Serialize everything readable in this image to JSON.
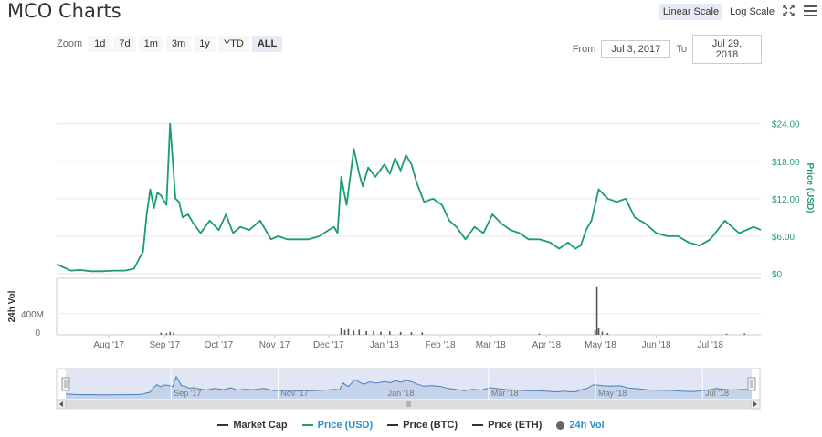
{
  "title": "MCO Charts",
  "scale": {
    "linear_label": "Linear Scale",
    "log_label": "Log Scale",
    "active": "linear"
  },
  "zoom": {
    "label": "Zoom",
    "buttons": [
      "1d",
      "7d",
      "1m",
      "3m",
      "1y",
      "YTD",
      "ALL"
    ],
    "active": "ALL"
  },
  "range": {
    "from_label": "From",
    "from_value": "Jul 3, 2017",
    "to_label": "To",
    "to_value": "Jul 29, 2018"
  },
  "legend": {
    "market_cap": "Market Cap",
    "price_usd": "Price (USD)",
    "price_btc": "Price (BTC)",
    "price_eth": "Price (ETH)",
    "vol_24h": "24h Vol"
  },
  "colors": {
    "price": "#1a9e6e",
    "volume": "#555555",
    "navigator": "#4a7fbf",
    "navigator_bg": "#ccd6eb",
    "accent_axis": "#2a9d6a"
  },
  "chart_data": {
    "type": "line",
    "x_range": [
      "2017-07-03",
      "2018-07-29"
    ],
    "price_axis": {
      "label": "Price (USD)",
      "ylim": [
        0,
        26
      ],
      "ticks": [
        "$0",
        "$6.00",
        "$12.00",
        "$18.00",
        "$24.00"
      ]
    },
    "volume_axis": {
      "label": "24h Vol",
      "ticks": [
        "0",
        "400M"
      ]
    },
    "x_tick_labels": [
      "Aug '17",
      "Sep '17",
      "Oct '17",
      "Nov '17",
      "Dec '17",
      "Jan '18",
      "Feb '18",
      "Mar '18",
      "Apr '18",
      "May '18",
      "Jun '18",
      "Jul '18"
    ],
    "x_tick_dates": [
      "2017-08-01",
      "2017-09-01",
      "2017-10-01",
      "2017-11-01",
      "2017-12-01",
      "2018-01-01",
      "2018-02-01",
      "2018-03-01",
      "2018-04-01",
      "2018-05-01",
      "2018-06-01",
      "2018-07-01"
    ],
    "navigator_tick_labels": [
      "Sep '17",
      "Nov '17",
      "Jan '18",
      "Mar '18",
      "May '18",
      "Jul '18"
    ],
    "navigator_tick_dates": [
      "2017-09-01",
      "2017-11-01",
      "2018-01-01",
      "2018-03-01",
      "2018-05-01",
      "2018-07-01"
    ],
    "series": [
      {
        "name": "Price (USD)",
        "x": [
          "2017-07-03",
          "2017-07-07",
          "2017-07-11",
          "2017-07-16",
          "2017-07-22",
          "2017-07-28",
          "2017-08-04",
          "2017-08-10",
          "2017-08-15",
          "2017-08-18",
          "2017-08-20",
          "2017-08-22",
          "2017-08-24",
          "2017-08-26",
          "2017-08-28",
          "2017-08-30",
          "2017-09-02",
          "2017-09-04",
          "2017-09-05",
          "2017-09-07",
          "2017-09-09",
          "2017-09-11",
          "2017-09-14",
          "2017-09-17",
          "2017-09-21",
          "2017-09-26",
          "2017-10-01",
          "2017-10-05",
          "2017-10-09",
          "2017-10-13",
          "2017-10-18",
          "2017-10-24",
          "2017-10-30",
          "2017-11-03",
          "2017-11-08",
          "2017-11-14",
          "2017-11-20",
          "2017-11-26",
          "2017-12-01",
          "2017-12-04",
          "2017-12-06",
          "2017-12-08",
          "2017-12-11",
          "2017-12-15",
          "2017-12-18",
          "2017-12-20",
          "2017-12-23",
          "2017-12-27",
          "2018-01-01",
          "2018-01-04",
          "2018-01-07",
          "2018-01-10",
          "2018-01-13",
          "2018-01-16",
          "2018-01-19",
          "2018-01-23",
          "2018-01-28",
          "2018-02-02",
          "2018-02-06",
          "2018-02-10",
          "2018-02-15",
          "2018-02-20",
          "2018-02-25",
          "2018-03-02",
          "2018-03-07",
          "2018-03-12",
          "2018-03-17",
          "2018-03-22",
          "2018-03-28",
          "2018-04-03",
          "2018-04-08",
          "2018-04-13",
          "2018-04-17",
          "2018-04-20",
          "2018-04-23",
          "2018-04-26",
          "2018-04-30",
          "2018-05-05",
          "2018-05-10",
          "2018-05-15",
          "2018-05-20",
          "2018-05-26",
          "2018-06-01",
          "2018-06-07",
          "2018-06-13",
          "2018-06-19",
          "2018-06-25",
          "2018-07-01",
          "2018-07-05",
          "2018-07-09",
          "2018-07-13",
          "2018-07-17",
          "2018-07-21",
          "2018-07-25",
          "2018-07-29"
        ],
        "values": [
          1.5,
          1.0,
          0.5,
          0.6,
          0.4,
          0.4,
          0.5,
          0.5,
          0.8,
          2.5,
          3.5,
          9.5,
          13.5,
          10.5,
          13.0,
          12.5,
          11.0,
          24.0,
          20.0,
          12.0,
          11.5,
          9.0,
          9.5,
          8.0,
          6.5,
          8.5,
          7.0,
          9.5,
          6.5,
          7.5,
          7.0,
          8.5,
          5.5,
          6.0,
          5.5,
          5.5,
          5.5,
          6.0,
          7.0,
          7.5,
          6.5,
          15.5,
          11.0,
          20.0,
          16.0,
          14.0,
          17.0,
          15.5,
          17.5,
          16.0,
          18.5,
          16.5,
          19.0,
          17.5,
          14.5,
          11.5,
          12.0,
          11.0,
          8.5,
          7.5,
          5.5,
          7.5,
          6.5,
          9.5,
          8.0,
          7.0,
          6.5,
          5.5,
          5.5,
          5.0,
          4.0,
          5.0,
          4.0,
          4.5,
          7.0,
          8.5,
          13.5,
          12.0,
          11.5,
          12.0,
          9.0,
          8.0,
          6.5,
          6.0,
          6.0,
          5.0,
          4.5,
          5.5,
          7.0,
          8.5,
          7.5,
          6.5,
          7.0,
          7.5,
          7.0
        ]
      },
      {
        "name": "24h Vol",
        "x": [
          "2017-08-30",
          "2017-09-02",
          "2017-09-04",
          "2017-09-06",
          "2017-12-08",
          "2017-12-10",
          "2017-12-12",
          "2017-12-15",
          "2017-12-18",
          "2017-12-22",
          "2017-12-26",
          "2017-12-30",
          "2018-01-04",
          "2018-01-10",
          "2018-01-16",
          "2018-01-22",
          "2018-03-28",
          "2018-04-28",
          "2018-04-29",
          "2018-04-30",
          "2018-05-02",
          "2018-05-05",
          "2018-07-10",
          "2018-07-20"
        ],
        "values": [
          40,
          30,
          55,
          45,
          130,
          90,
          110,
          80,
          95,
          70,
          75,
          60,
          65,
          55,
          50,
          45,
          25,
          80,
          900,
          120,
          60,
          35,
          20,
          25
        ]
      }
    ]
  }
}
